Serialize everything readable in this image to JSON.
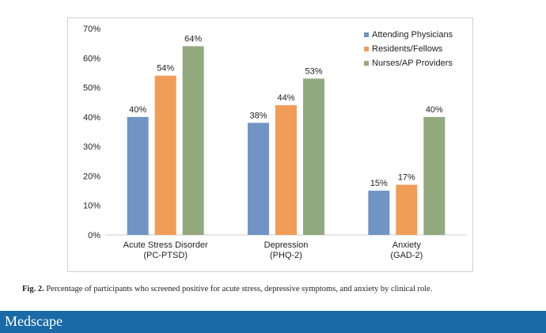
{
  "chart_data": {
    "type": "bar",
    "title": "",
    "xlabel": "",
    "ylabel": "",
    "ylim": [
      0,
      70
    ],
    "yticks": [
      "0%",
      "10%",
      "20%",
      "30%",
      "40%",
      "50%",
      "60%",
      "70%"
    ],
    "categories": [
      [
        "Acute Stress Disorder",
        "(PC-PTSD)"
      ],
      [
        "Depression",
        "(PHQ-2)"
      ],
      [
        "Anxiety",
        "(GAD-2)"
      ]
    ],
    "series": [
      {
        "name": "Attending Physicians",
        "color": "#7094c4",
        "values": [
          40,
          38,
          15
        ],
        "labels": [
          "40%",
          "38%",
          "15%"
        ]
      },
      {
        "name": "Residents/Fellows",
        "color": "#f19d57",
        "values": [
          54,
          44,
          17
        ],
        "labels": [
          "54%",
          "44%",
          "17%"
        ]
      },
      {
        "name": "Nurses/AP Providers",
        "color": "#93aa7f",
        "values": [
          64,
          53,
          40
        ],
        "labels": [
          "64%",
          "53%",
          "40%"
        ]
      }
    ],
    "legend_position": "top-right",
    "grid": false
  },
  "caption": {
    "label": "Fig. 2.",
    "text": "Percentage of participants who screened positive for acute stress, depressive symptoms, and anxiety by clinical role."
  },
  "footer": {
    "brand": "Medscape"
  }
}
